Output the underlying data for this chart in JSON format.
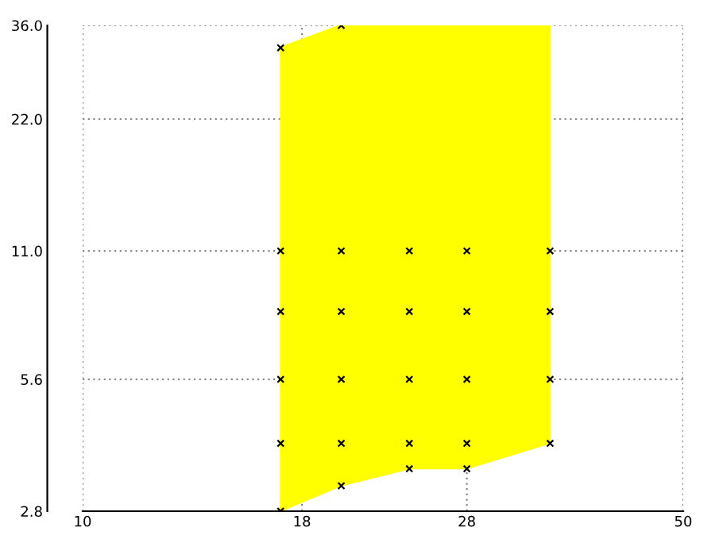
{
  "chart_data": {
    "type": "scatter",
    "series": [
      {
        "type": "line",
        "color": "#ffff00",
        "x": [
          17,
          20,
          24,
          28,
          35
        ],
        "values": [
          32,
          36,
          36,
          36,
          36
        ],
        "lower": [
          2.8,
          3.2,
          3.5,
          3.5,
          4
        ],
        "upper": [
          32,
          36,
          36,
          36,
          36
        ]
      },
      {
        "type": "scatter",
        "color": "#000000",
        "marker": "cross",
        "x": [
          17,
          17,
          17,
          17,
          17,
          17,
          20,
          20,
          20,
          20,
          20,
          20,
          24,
          24,
          24,
          24,
          24,
          28,
          28,
          28,
          28,
          28,
          35,
          35,
          35,
          35
        ],
        "values": [
          2.8,
          4,
          5.6,
          8,
          11,
          32,
          3.2,
          4,
          5.6,
          8,
          11,
          36,
          3.5,
          4,
          5.6,
          8,
          11,
          3.5,
          4,
          5.6,
          8,
          11,
          4,
          5.6,
          8,
          11
        ]
      }
    ],
    "log": "xy",
    "xlim": [
      10,
      50
    ],
    "ylim": [
      2.8,
      36
    ],
    "xticks": [
      10,
      18,
      28,
      50
    ],
    "yticks": [
      2.8,
      5.6,
      {
        "value": 11,
        "label": "11.0"
      },
      {
        "value": 22,
        "label": "22.0"
      },
      {
        "value": 36,
        "label": "36.0"
      }
    ],
    "grid": true
  }
}
